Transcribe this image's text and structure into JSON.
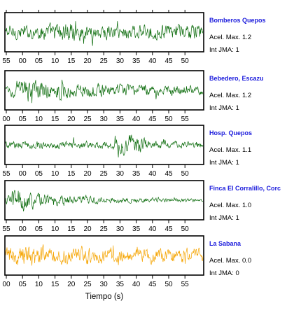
{
  "chart_data": {
    "type": "line",
    "xlabel": "Tiempo (s)",
    "grid": false,
    "series": [
      {
        "name": "Bomberos Quepos",
        "accel_label": "Acel. Max. 1.2",
        "jma_label": "Int JMA: 1",
        "color": "#0b6b0b",
        "tick_labels": [
          "55",
          "00",
          "05",
          "10",
          "15",
          "20",
          "25",
          "30",
          "35",
          "40",
          "45",
          "50"
        ],
        "envelope": [
          {
            "t": 0,
            "amp": 0.55
          },
          {
            "t": 10,
            "amp": 0.55
          },
          {
            "t": 15,
            "amp": 0.8
          },
          {
            "t": 17,
            "amp": 0.95
          },
          {
            "t": 20,
            "amp": 0.6
          },
          {
            "t": 40,
            "amp": 0.55
          },
          {
            "t": 55,
            "amp": 0.6
          }
        ]
      },
      {
        "name": "Bebedero, Escazu",
        "accel_label": "Acel. Max. 1.2",
        "jma_label": "Int JMA: 1",
        "color": "#0b6b0b",
        "tick_labels": [
          "00",
          "05",
          "10",
          "15",
          "20",
          "25",
          "30",
          "35",
          "40",
          "45",
          "50",
          "55"
        ],
        "envelope": [
          {
            "t": 0,
            "amp": 0.4
          },
          {
            "t": 5,
            "amp": 0.95
          },
          {
            "t": 10,
            "amp": 0.7
          },
          {
            "t": 20,
            "amp": 0.55
          },
          {
            "t": 35,
            "amp": 0.45
          },
          {
            "t": 55,
            "amp": 0.35
          }
        ]
      },
      {
        "name": "Hosp. Quepos",
        "accel_label": "Acel. Max. 1.1",
        "jma_label": "Int JMA: 1",
        "color": "#0b6b0b",
        "tick_labels": [
          "55",
          "00",
          "05",
          "10",
          "15",
          "20",
          "25",
          "30",
          "35",
          "40",
          "45",
          "50"
        ],
        "envelope": [
          {
            "t": 0,
            "amp": 0.3
          },
          {
            "t": 10,
            "amp": 0.3
          },
          {
            "t": 28,
            "amp": 0.3
          },
          {
            "t": 36,
            "amp": 1.0
          },
          {
            "t": 40,
            "amp": 0.3
          },
          {
            "t": 55,
            "amp": 0.25
          }
        ]
      },
      {
        "name": "Finca El Corralillo, Corc",
        "accel_label": "Acel. Max. 1.0",
        "jma_label": "Int JMA: 1",
        "color": "#0b6b0b",
        "tick_labels": [
          "55",
          "00",
          "05",
          "10",
          "15",
          "20",
          "25",
          "30",
          "35",
          "40",
          "45",
          "50"
        ],
        "envelope": [
          {
            "t": 0,
            "amp": 0.3
          },
          {
            "t": 2,
            "amp": 1.0
          },
          {
            "t": 10,
            "amp": 0.6
          },
          {
            "t": 20,
            "amp": 0.35
          },
          {
            "t": 35,
            "amp": 0.2
          },
          {
            "t": 55,
            "amp": 0.12
          }
        ]
      },
      {
        "name": "La Sabana",
        "accel_label": "Acel. Max. 0.0",
        "jma_label": "Int JMA: 0",
        "color": "#f5a400",
        "tick_labels": [
          "00",
          "05",
          "10",
          "15",
          "20",
          "25",
          "30",
          "35",
          "40",
          "45",
          "50",
          "55"
        ],
        "envelope": [
          {
            "t": 0,
            "amp": 0.7
          },
          {
            "t": 5,
            "amp": 0.9
          },
          {
            "t": 15,
            "amp": 0.75
          },
          {
            "t": 30,
            "amp": 0.6
          },
          {
            "t": 55,
            "amp": 0.55
          }
        ]
      }
    ]
  }
}
